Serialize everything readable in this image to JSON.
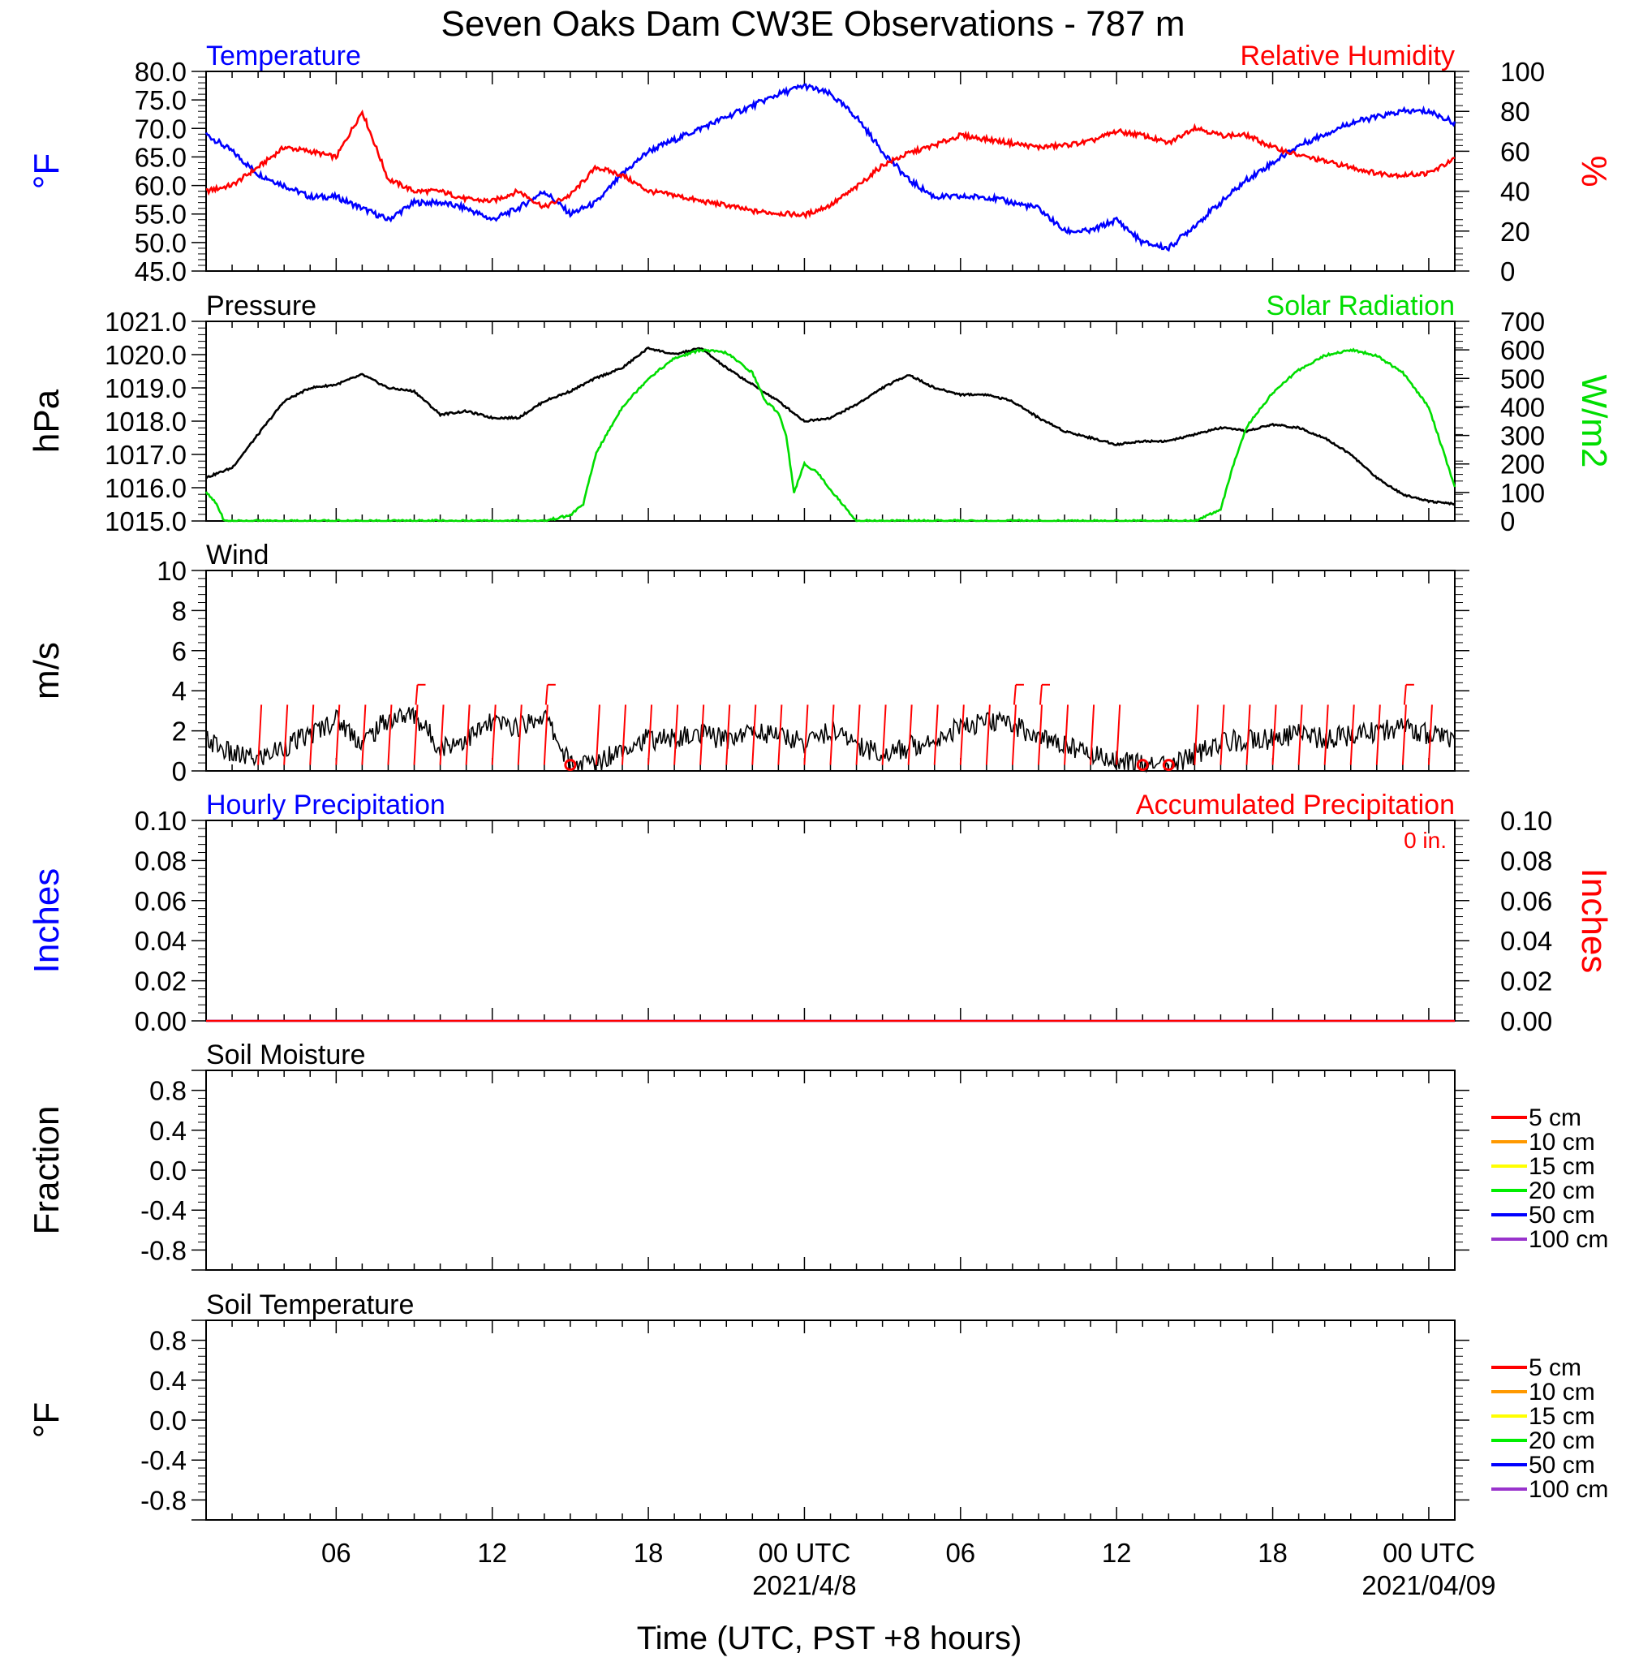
{
  "title": "Seven Oaks Dam CW3E Observations - 787 m",
  "xaxis": {
    "label": "Time (UTC, PST +8 hours)",
    "ticks": [
      {
        "t": 6,
        "label": "06"
      },
      {
        "t": 12,
        "label": "12"
      },
      {
        "t": 18,
        "label": "18"
      },
      {
        "t": 24,
        "label": "00 UTC"
      },
      {
        "t": 30,
        "label": "06"
      },
      {
        "t": 36,
        "label": "12"
      },
      {
        "t": 42,
        "label": "18"
      },
      {
        "t": 48,
        "label": "00 UTC"
      }
    ],
    "dates": [
      {
        "t": 24,
        "label": "2021/4/8"
      },
      {
        "t": 48,
        "label": "2021/04/09"
      }
    ],
    "range_hours": [
      1,
      49
    ]
  },
  "colors": {
    "temperature": "#0000ff",
    "humidity": "#ff0000",
    "pressure": "#000000",
    "solar": "#00dd00",
    "wind": "#000000",
    "wind_barb": "#ff0000",
    "hourly_precip": "#0000ff",
    "accum_precip": "#ff0000"
  },
  "legend": {
    "entries": [
      {
        "label": "5 cm",
        "color": "#ff0000"
      },
      {
        "label": "10 cm",
        "color": "#ff9900"
      },
      {
        "label": "15 cm",
        "color": "#ffff00"
      },
      {
        "label": "20 cm",
        "color": "#00ee00"
      },
      {
        "label": "50 cm",
        "color": "#0000ff"
      },
      {
        "label": "100 cm",
        "color": "#9933cc"
      }
    ]
  },
  "chart_data": [
    {
      "type": "line",
      "title_left": "Temperature",
      "title_right": "Relative Humidity",
      "ylabel": "°F",
      "ylabel_right": "%",
      "ylim": [
        45,
        80
      ],
      "yticks": [
        "45.0",
        "50.0",
        "55.0",
        "60.0",
        "65.0",
        "70.0",
        "75.0",
        "80.0"
      ],
      "ylim_right": [
        0,
        100
      ],
      "yticks_right": [
        "0",
        "20",
        "40",
        "60",
        "80",
        "100"
      ],
      "series": [
        {
          "name": "Temperature",
          "axis": "left",
          "x": [
            1,
            2,
            3,
            4,
            5,
            6,
            7,
            8,
            9,
            10,
            11,
            12,
            13,
            14,
            15,
            16,
            17,
            18,
            19,
            20,
            21,
            22,
            23,
            24,
            25,
            26,
            27,
            28,
            29,
            30,
            31,
            32,
            33,
            34,
            35,
            36,
            37,
            38,
            39,
            40,
            41,
            42,
            43,
            44,
            45,
            46,
            47,
            48,
            49
          ],
          "y": [
            69,
            66,
            62,
            60,
            58,
            58,
            56,
            54,
            57,
            57,
            56,
            54,
            56,
            59,
            55,
            57,
            62,
            66,
            68,
            70,
            72,
            74,
            76,
            77.5,
            76,
            72,
            66,
            61,
            58,
            58,
            58,
            57,
            56,
            52,
            52,
            54,
            50,
            49,
            53,
            57,
            61,
            64,
            67,
            69,
            71,
            72,
            73,
            73,
            71
          ]
        },
        {
          "name": "Relative Humidity",
          "axis": "right",
          "x": [
            1,
            2,
            3,
            4,
            5,
            6,
            7,
            8,
            9,
            10,
            11,
            12,
            13,
            14,
            15,
            16,
            17,
            18,
            19,
            20,
            21,
            22,
            23,
            24,
            25,
            26,
            27,
            28,
            29,
            30,
            31,
            32,
            33,
            34,
            35,
            36,
            37,
            38,
            39,
            40,
            41,
            42,
            43,
            44,
            45,
            46,
            47,
            48,
            49
          ],
          "y": [
            40,
            43,
            52,
            62,
            60,
            57,
            80,
            46,
            40,
            40,
            36,
            35,
            40,
            32,
            38,
            52,
            48,
            40,
            38,
            35,
            33,
            30,
            29,
            28,
            33,
            42,
            53,
            59,
            63,
            68,
            66,
            64,
            62,
            63,
            65,
            70,
            68,
            64,
            72,
            68,
            68,
            62,
            58,
            55,
            52,
            49,
            48,
            49,
            56
          ]
        }
      ]
    },
    {
      "type": "line",
      "title_left": "Pressure",
      "title_right": "Solar Radiation",
      "ylabel": "hPa",
      "ylabel_right": "W/m2",
      "ylim": [
        1015,
        1021
      ],
      "yticks": [
        "1015.0",
        "1016.0",
        "1017.0",
        "1018.0",
        "1019.0",
        "1020.0",
        "1021.0"
      ],
      "ylim_right": [
        0,
        700
      ],
      "yticks_right": [
        "0",
        "100",
        "200",
        "300",
        "400",
        "500",
        "600",
        "700"
      ],
      "series": [
        {
          "name": "Pressure",
          "axis": "left",
          "x": [
            1,
            2,
            3,
            4,
            5,
            6,
            7,
            8,
            9,
            10,
            11,
            12,
            13,
            14,
            15,
            16,
            17,
            18,
            19,
            20,
            21,
            22,
            23,
            24,
            25,
            26,
            27,
            28,
            29,
            30,
            31,
            32,
            33,
            34,
            35,
            36,
            37,
            38,
            39,
            40,
            41,
            42,
            43,
            44,
            45,
            46,
            47,
            48,
            49
          ],
          "y": [
            1016.3,
            1016.6,
            1017.6,
            1018.6,
            1019.0,
            1019.1,
            1019.4,
            1019.0,
            1018.9,
            1018.2,
            1018.3,
            1018.1,
            1018.1,
            1018.6,
            1018.9,
            1019.3,
            1019.6,
            1020.2,
            1020.0,
            1020.2,
            1019.6,
            1019.1,
            1018.6,
            1018.0,
            1018.1,
            1018.5,
            1019.0,
            1019.4,
            1019.0,
            1018.8,
            1018.8,
            1018.6,
            1018.1,
            1017.7,
            1017.5,
            1017.3,
            1017.4,
            1017.4,
            1017.6,
            1017.8,
            1017.7,
            1017.9,
            1017.8,
            1017.5,
            1017.0,
            1016.3,
            1015.8,
            1015.6,
            1015.5
          ]
        },
        {
          "name": "Solar Radiation",
          "axis": "right",
          "x": [
            1,
            1.4,
            1.7,
            2,
            6,
            10,
            14,
            15,
            15.5,
            16,
            17,
            18,
            19,
            20,
            21,
            22,
            22.5,
            23,
            23.3,
            23.6,
            24,
            24.5,
            25,
            26,
            26.5,
            27,
            30,
            34,
            38,
            39,
            39.5,
            40,
            40.5,
            41,
            42,
            43,
            44,
            45,
            46,
            47,
            48,
            49
          ],
          "y": [
            100,
            60,
            0,
            0,
            0,
            0,
            0,
            20,
            60,
            240,
            400,
            500,
            570,
            600,
            590,
            520,
            420,
            380,
            300,
            100,
            200,
            170,
            110,
            0,
            0,
            0,
            0,
            0,
            0,
            0,
            20,
            40,
            200,
            330,
            450,
            530,
            580,
            600,
            580,
            520,
            400,
            120
          ]
        }
      ]
    },
    {
      "type": "line",
      "title_left": "Wind",
      "ylabel": "m/s",
      "ylim": [
        0,
        10
      ],
      "yticks": [
        "0",
        "2",
        "4",
        "6",
        "8",
        "10"
      ],
      "series": [
        {
          "name": "Wind",
          "axis": "left",
          "x": [
            1,
            2,
            3,
            4,
            5,
            6,
            7,
            8,
            9,
            10,
            11,
            12,
            13,
            14,
            15,
            16,
            17,
            18,
            19,
            20,
            21,
            22,
            23,
            24,
            25,
            26,
            27,
            28,
            29,
            30,
            31,
            32,
            33,
            34,
            35,
            36,
            37,
            38,
            39,
            40,
            41,
            42,
            43,
            44,
            45,
            46,
            47,
            48,
            49
          ],
          "y": [
            1.6,
            0.8,
            0.6,
            1.2,
            1.8,
            2.6,
            1.4,
            2.6,
            2.8,
            1.2,
            1.6,
            2.4,
            2.2,
            2.8,
            0.3,
            0.4,
            1.2,
            1.6,
            1.6,
            1.8,
            1.6,
            2.0,
            1.8,
            1.4,
            2.0,
            1.4,
            0.8,
            1.2,
            1.6,
            2.2,
            2.4,
            2.4,
            1.6,
            1.4,
            0.8,
            0.6,
            0.3,
            0.2,
            0.8,
            1.4,
            1.6,
            1.6,
            1.8,
            1.6,
            1.8,
            2.0,
            2.2,
            1.8,
            1.6
          ]
        }
      ],
      "barb_hours": [
        3,
        4,
        5,
        6,
        7,
        8,
        9,
        10,
        11,
        12,
        13,
        14,
        16,
        17,
        18,
        19,
        20,
        21,
        22,
        23,
        24,
        25,
        26,
        27,
        28,
        29,
        30,
        31,
        32,
        33,
        34,
        35,
        36,
        39,
        40,
        41,
        42,
        43,
        44,
        45,
        46,
        47,
        48
      ],
      "flag_hours": [
        9,
        14,
        32,
        33,
        47
      ],
      "calm_hours": [
        15,
        37,
        38
      ]
    },
    {
      "type": "line",
      "title_left": "Hourly Precipitation",
      "title_right": "Accumulated Precipitation",
      "annotation": "0 in.",
      "ylabel": "Inches",
      "ylabel_right": "Inches",
      "ylim": [
        0,
        0.1
      ],
      "yticks": [
        "0.00",
        "0.02",
        "0.04",
        "0.06",
        "0.08",
        "0.10"
      ],
      "yticks_right": [
        "0.00",
        "0.02",
        "0.04",
        "0.06",
        "0.08",
        "0.10"
      ],
      "series": [
        {
          "name": "Hourly Precipitation",
          "axis": "left",
          "x": [
            1,
            49
          ],
          "y": [
            0,
            0
          ]
        },
        {
          "name": "Accumulated Precipitation",
          "axis": "left",
          "x": [
            1,
            49
          ],
          "y": [
            0,
            0
          ]
        }
      ]
    },
    {
      "type": "line",
      "title_left": "Soil Moisture",
      "ylabel": "Fraction",
      "ylim": [
        -1,
        1
      ],
      "yticks": [
        "-0.8",
        "-0.4",
        "0.0",
        "0.4",
        "0.8"
      ],
      "series": []
    },
    {
      "type": "line",
      "title_left": "Soil Temperature",
      "ylabel": "°F",
      "ylim": [
        -1,
        1
      ],
      "yticks": [
        "-0.8",
        "-0.4",
        "0.0",
        "0.4",
        "0.8"
      ],
      "series": []
    }
  ]
}
